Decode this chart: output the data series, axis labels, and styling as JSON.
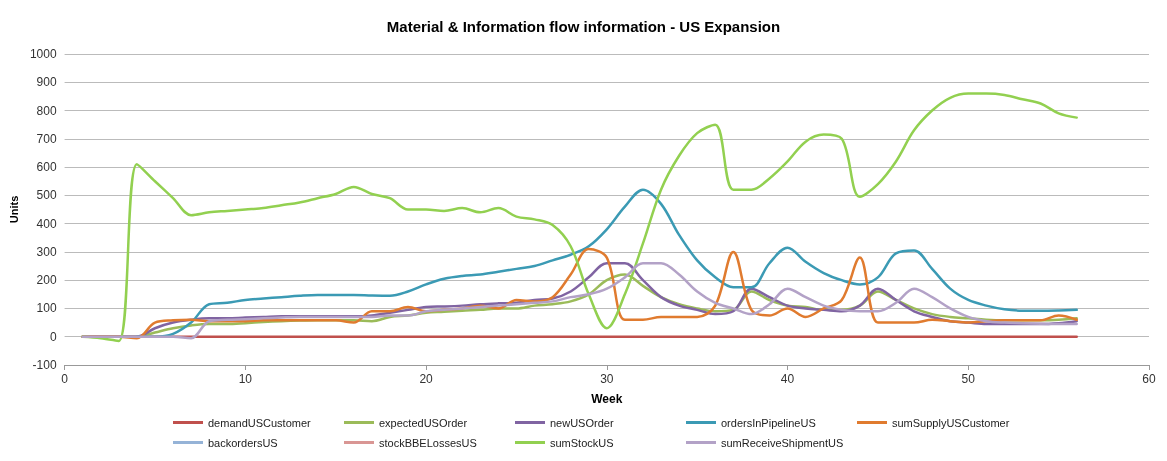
{
  "chart_data": {
    "type": "line",
    "title": "Material & Information flow information - US Expansion",
    "xlabel": "Week",
    "ylabel": "Units",
    "x": [
      1,
      2,
      3,
      4,
      5,
      6,
      7,
      8,
      9,
      10,
      11,
      12,
      13,
      14,
      15,
      16,
      17,
      18,
      19,
      20,
      21,
      22,
      23,
      24,
      25,
      26,
      27,
      28,
      29,
      30,
      31,
      32,
      33,
      34,
      35,
      36,
      37,
      38,
      39,
      40,
      41,
      42,
      43,
      44,
      45,
      46,
      47,
      48,
      49,
      50,
      51,
      52,
      53,
      54,
      55,
      56
    ],
    "xlim": [
      0,
      60
    ],
    "xticks": [
      0,
      10,
      20,
      30,
      40,
      50,
      60
    ],
    "ylim": [
      -100,
      1000
    ],
    "yticks": [
      -100,
      0,
      100,
      200,
      300,
      400,
      500,
      600,
      700,
      800,
      900,
      1000
    ],
    "grid": "y",
    "legend": "bottom",
    "marker": "none",
    "line_style": "solid",
    "series": [
      {
        "name": "demandUSCustomer",
        "color": "#c0504d",
        "values": [
          0,
          0,
          0,
          0,
          0,
          0,
          0,
          0,
          0,
          0,
          0,
          0,
          0,
          0,
          0,
          0,
          0,
          0,
          0,
          0,
          0,
          0,
          0,
          0,
          0,
          0,
          0,
          0,
          0,
          0,
          0,
          0,
          0,
          0,
          0,
          0,
          0,
          0,
          0,
          0,
          0,
          0,
          0,
          0,
          0,
          0,
          0,
          0,
          0,
          0,
          0,
          0,
          0,
          0,
          0,
          0
        ]
      },
      {
        "name": "expectedUSOrder",
        "color": "#9bbb59",
        "values": [
          0,
          0,
          0,
          0,
          15,
          30,
          40,
          45,
          45,
          48,
          52,
          55,
          57,
          58,
          58,
          58,
          55,
          70,
          75,
          85,
          88,
          92,
          95,
          100,
          100,
          110,
          115,
          125,
          150,
          200,
          220,
          180,
          140,
          115,
          100,
          90,
          95,
          160,
          130,
          110,
          105,
          95,
          95,
          110,
          160,
          130,
          100,
          80,
          70,
          65,
          60,
          58,
          58,
          58,
          60,
          65
        ]
      },
      {
        "name": "newUSOrder",
        "color": "#8064a2",
        "values": [
          0,
          0,
          0,
          0,
          30,
          50,
          60,
          65,
          65,
          68,
          70,
          72,
          72,
          72,
          72,
          72,
          75,
          85,
          95,
          105,
          107,
          110,
          115,
          118,
          120,
          130,
          135,
          160,
          210,
          260,
          260,
          200,
          140,
          110,
          95,
          80,
          90,
          170,
          140,
          110,
          100,
          95,
          90,
          110,
          170,
          130,
          90,
          70,
          55,
          50,
          45,
          45,
          45,
          45,
          48,
          55
        ]
      },
      {
        "name": "ordersInPipelineUS",
        "color": "#3b9ab4",
        "values": [
          null,
          null,
          null,
          0,
          0,
          10,
          50,
          115,
          120,
          130,
          135,
          140,
          145,
          148,
          148,
          148,
          146,
          145,
          160,
          185,
          205,
          215,
          220,
          230,
          240,
          250,
          270,
          290,
          320,
          380,
          460,
          520,
          470,
          360,
          270,
          210,
          175,
          175,
          260,
          315,
          265,
          225,
          200,
          185,
          210,
          295,
          305,
          240,
          170,
          130,
          110,
          97,
          92,
          92,
          93,
          95
        ]
      },
      {
        "name": "sumSupplyUSCustomer",
        "color": "#e07b2f",
        "values": [
          0,
          0,
          0,
          -5,
          50,
          58,
          60,
          55,
          55,
          55,
          58,
          58,
          58,
          58,
          58,
          50,
          90,
          90,
          105,
          90,
          95,
          100,
          110,
          100,
          130,
          125,
          140,
          220,
          310,
          280,
          60,
          60,
          70,
          70,
          70,
          110,
          300,
          95,
          75,
          100,
          70,
          100,
          130,
          280,
          50,
          50,
          50,
          60,
          55,
          50,
          55,
          58,
          58,
          58,
          75,
          60
        ]
      },
      {
        "name": "backordersUS",
        "color": "#95b3d7",
        "values": [
          null,
          null,
          null,
          null,
          null,
          null,
          null,
          null,
          null,
          null,
          null,
          null,
          null,
          null,
          null,
          null,
          null,
          null,
          null,
          null,
          null,
          null,
          null,
          null,
          null,
          null,
          null,
          null,
          null,
          null,
          null,
          null,
          null,
          null,
          null,
          null,
          null,
          null,
          null,
          null,
          null,
          null,
          null,
          null,
          null,
          null,
          null,
          null,
          null,
          null,
          null,
          null,
          null,
          null,
          null,
          null
        ]
      },
      {
        "name": "stockBBELossesUS",
        "color": "#d99694",
        "values": [
          null,
          null,
          null,
          null,
          null,
          null,
          null,
          null,
          null,
          null,
          null,
          null,
          null,
          null,
          null,
          null,
          null,
          null,
          null,
          null,
          null,
          null,
          null,
          null,
          null,
          null,
          null,
          null,
          null,
          null,
          null,
          null,
          null,
          null,
          null,
          null,
          null,
          null,
          null,
          null,
          null,
          null,
          null,
          null,
          null,
          null,
          null,
          null,
          null,
          null,
          null,
          null,
          null,
          null,
          null,
          null
        ]
      },
      {
        "name": "sumStockUS",
        "color": "#92d050",
        "values": [
          0,
          -5,
          -15,
          610,
          550,
          490,
          430,
          440,
          445,
          450,
          455,
          465,
          475,
          490,
          505,
          530,
          505,
          490,
          450,
          450,
          445,
          455,
          440,
          455,
          425,
          415,
          395,
          320,
          150,
          30,
          150,
          330,
          520,
          640,
          720,
          750,
          520,
          520,
          560,
          620,
          690,
          715,
          700,
          495,
          540,
          620,
          730,
          800,
          845,
          860,
          860,
          855,
          840,
          825,
          790,
          775
        ]
      },
      {
        "name": "sumReceiveShipmentUS",
        "color": "#b3a2c7",
        "values": [
          0,
          0,
          0,
          0,
          0,
          0,
          -5,
          55,
          60,
          62,
          65,
          68,
          70,
          70,
          70,
          70,
          70,
          75,
          75,
          90,
          95,
          100,
          105,
          110,
          115,
          120,
          125,
          140,
          150,
          170,
          210,
          260,
          260,
          220,
          160,
          120,
          100,
          80,
          115,
          170,
          140,
          110,
          95,
          90,
          90,
          120,
          170,
          140,
          100,
          70,
          55,
          50,
          48,
          46,
          45,
          45
        ]
      }
    ]
  }
}
